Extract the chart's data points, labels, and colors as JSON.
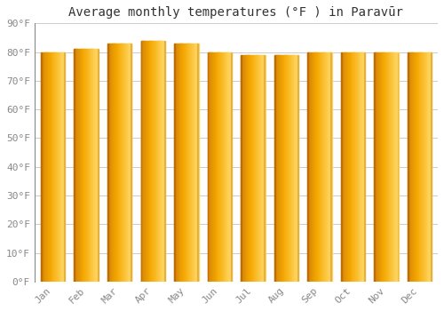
{
  "title": "Average monthly temperatures (°F ) in Paravūr",
  "months": [
    "Jan",
    "Feb",
    "Mar",
    "Apr",
    "May",
    "Jun",
    "Jul",
    "Aug",
    "Sep",
    "Oct",
    "Nov",
    "Dec"
  ],
  "values": [
    80,
    81,
    83,
    84,
    83,
    80,
    79,
    79,
    80,
    80,
    80,
    80
  ],
  "bar_color_left": "#D4840A",
  "bar_color_mid": "#F5A800",
  "bar_color_right": "#FFD966",
  "ylim": [
    0,
    90
  ],
  "yticks": [
    0,
    10,
    20,
    30,
    40,
    50,
    60,
    70,
    80,
    90
  ],
  "ytick_labels": [
    "0°F",
    "10°F",
    "20°F",
    "30°F",
    "40°F",
    "50°F",
    "60°F",
    "70°F",
    "80°F",
    "90°F"
  ],
  "background_color": "#FFFFFF",
  "grid_color": "#CCCCCC",
  "title_fontsize": 10,
  "tick_fontsize": 8,
  "bar_width": 0.72
}
